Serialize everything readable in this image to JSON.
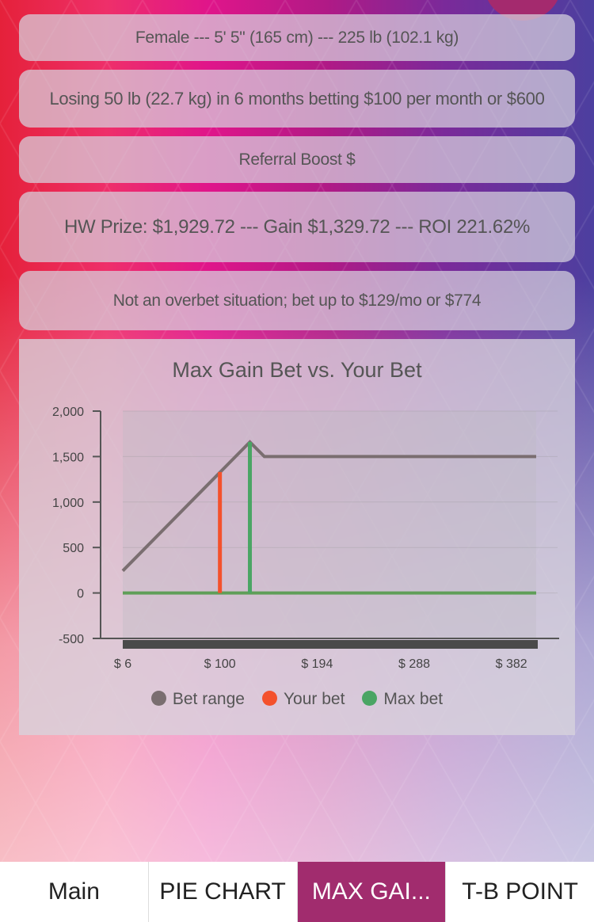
{
  "cards": {
    "profile": "Female --- 5' 5\" (165 cm) --- 225 lb (102.1 kg)",
    "goal": "Losing 50 lb (22.7 kg) in 6 months betting $100 per month or $600",
    "referral": "Referral Boost $",
    "prize": "HW Prize: $1,929.72 --- Gain $1,329.72 --- ROI 221.62%",
    "overbet": "Not an overbet situation; bet up to $129/mo or $774"
  },
  "chart_data": {
    "type": "line",
    "title": "Max Gain Bet vs. Your Bet",
    "xlabel": "",
    "ylabel": "",
    "xlim": [
      6,
      406
    ],
    "ylim": [
      -500,
      2000
    ],
    "x_ticks": [
      "$ 6",
      "$ 100",
      "$ 194",
      "$ 288",
      "$ 382"
    ],
    "x_tick_values": [
      6,
      100,
      194,
      288,
      382
    ],
    "y_ticks": [
      "2,000",
      "1,500",
      "1,000",
      "500",
      "0",
      "-500"
    ],
    "y_tick_values": [
      2000,
      1500,
      1000,
      500,
      0,
      -500
    ],
    "grid": true,
    "legend": "bottom",
    "series": [
      {
        "name": "Bet range",
        "color": "#7a6e70",
        "points": [
          [
            6,
            243
          ],
          [
            129,
            1660
          ],
          [
            143,
            1500
          ],
          [
            406,
            1500
          ]
        ]
      },
      {
        "name": "Your bet",
        "color": "#f4512c",
        "points": [
          [
            100,
            0
          ],
          [
            100,
            1330
          ]
        ]
      },
      {
        "name": "Max bet",
        "color": "#4aa564",
        "points": [
          [
            129,
            0
          ],
          [
            129,
            1660
          ]
        ]
      }
    ],
    "zero_line": {
      "color": "#5f9e58",
      "points": [
        [
          6,
          0
        ],
        [
          406,
          0
        ]
      ]
    }
  },
  "tabs": [
    {
      "label": "Main",
      "active": false
    },
    {
      "label": "PIE CHART",
      "active": false
    },
    {
      "label": "MAX GAI...",
      "active": true
    },
    {
      "label": "T-B POINT",
      "active": false
    }
  ]
}
